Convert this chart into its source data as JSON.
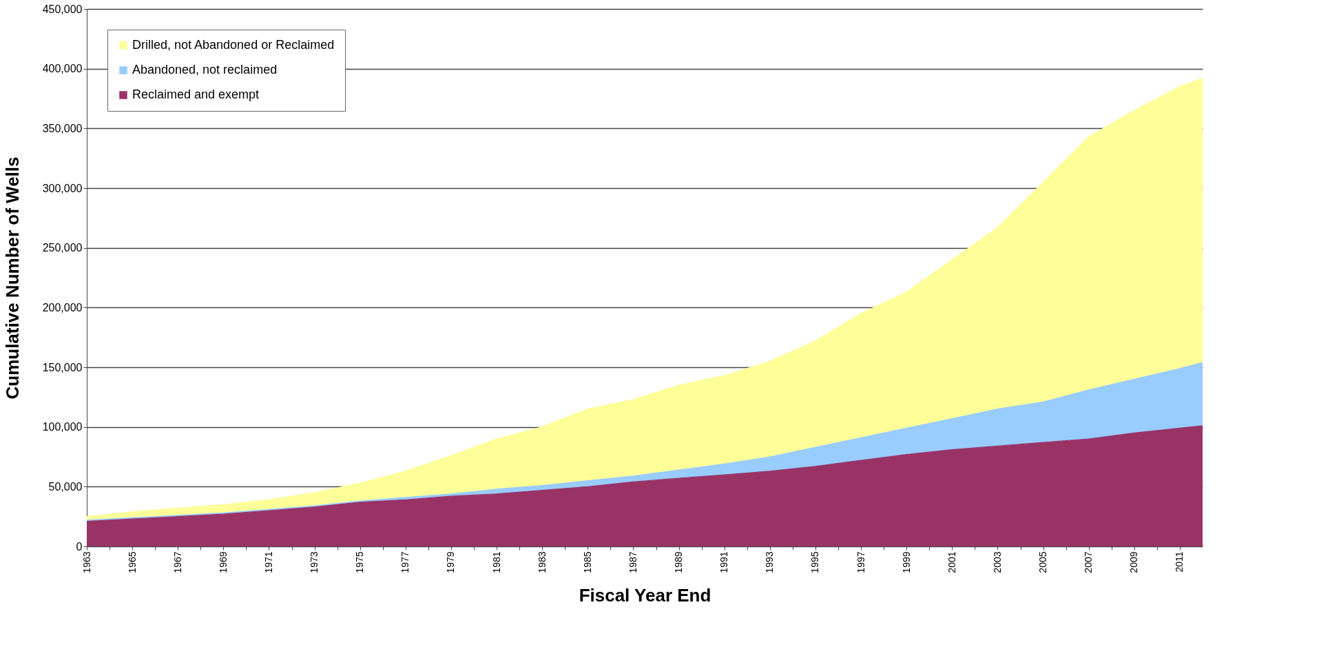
{
  "chart_data": {
    "type": "area",
    "stacked": true,
    "xlabel": "Fiscal Year End",
    "ylabel": "Cumulative Number of Wells",
    "x": [
      1963,
      1965,
      1967,
      1969,
      1971,
      1973,
      1975,
      1977,
      1979,
      1981,
      1983,
      1985,
      1987,
      1989,
      1991,
      1993,
      1995,
      1997,
      1999,
      2001,
      2003,
      2005,
      2007,
      2009,
      2011,
      2012
    ],
    "series": [
      {
        "name": "Reclaimed and exempt",
        "color": "#993366",
        "values": [
          21000,
          23000,
          25000,
          27000,
          30000,
          33000,
          37000,
          39000,
          42000,
          44000,
          47000,
          50000,
          54000,
          57000,
          60000,
          63000,
          67000,
          72000,
          77000,
          81000,
          84000,
          87000,
          90000,
          95000,
          99000,
          101000
        ]
      },
      {
        "name": "Abandoned, not reclaimed",
        "color": "#99ccff",
        "values": [
          1000,
          1000,
          1000,
          1000,
          1000,
          1000,
          1000,
          2000,
          2000,
          4000,
          4000,
          5000,
          5000,
          7000,
          9000,
          12000,
          16000,
          19000,
          22000,
          26000,
          31000,
          34000,
          41000,
          45000,
          50000,
          53000
        ]
      },
      {
        "name": "Drilled, not Abandoned or Reclaimed",
        "color": "#ffff99",
        "values": [
          3000,
          5000,
          6000,
          7000,
          8000,
          11000,
          15000,
          22000,
          32000,
          42000,
          49000,
          60000,
          64000,
          71000,
          74000,
          80000,
          89000,
          104000,
          114000,
          133000,
          152000,
          184000,
          212000,
          225000,
          236000,
          238000
        ]
      }
    ],
    "xlim": [
      1963,
      2012
    ],
    "xticks": [
      1963,
      {
        "value": 1964,
        "label": null
      },
      1965,
      {
        "value": 1966,
        "label": null
      },
      1967,
      {
        "value": 1968,
        "label": null
      },
      1969,
      {
        "value": 1970,
        "label": null
      },
      1971,
      {
        "value": 1972,
        "label": null
      },
      1973,
      {
        "value": 1974,
        "label": null
      },
      1975,
      {
        "value": 1976,
        "label": null
      },
      1977,
      {
        "value": 1978,
        "label": null
      },
      1979,
      {
        "value": 1980,
        "label": null
      },
      1981,
      {
        "value": 1982,
        "label": null
      },
      1983,
      {
        "value": 1984,
        "label": null
      },
      1985,
      {
        "value": 1986,
        "label": null
      },
      1987,
      {
        "value": 1988,
        "label": null
      },
      1989,
      {
        "value": 1990,
        "label": null
      },
      1991,
      {
        "value": 1992,
        "label": null
      },
      1993,
      {
        "value": 1994,
        "label": null
      },
      1995,
      {
        "value": 1996,
        "label": null
      },
      1997,
      {
        "value": 1998,
        "label": null
      },
      1999,
      {
        "value": 2000,
        "label": null
      },
      2001,
      {
        "value": 2002,
        "label": null
      },
      2003,
      {
        "value": 2004,
        "label": null
      },
      2005,
      {
        "value": 2006,
        "label": null
      },
      2007,
      {
        "value": 2008,
        "label": null
      },
      2009,
      {
        "value": 2010,
        "label": null
      },
      2011
    ],
    "ylim": [
      0,
      450000
    ],
    "yticks": [
      {
        "value": 0,
        "label": "0"
      },
      {
        "value": 50000,
        "label": "50,000"
      },
      {
        "value": 100000,
        "label": "100,000"
      },
      {
        "value": 150000,
        "label": "150,000"
      },
      {
        "value": 200000,
        "label": "200,000"
      },
      {
        "value": 250000,
        "label": "250,000"
      },
      {
        "value": 300000,
        "label": "300,000"
      },
      {
        "value": 350000,
        "label": "350,000"
      },
      {
        "value": 400000,
        "label": "400,000"
      },
      {
        "value": 450000,
        "label": "450,000"
      }
    ],
    "grid": "y",
    "legend": "top left"
  }
}
